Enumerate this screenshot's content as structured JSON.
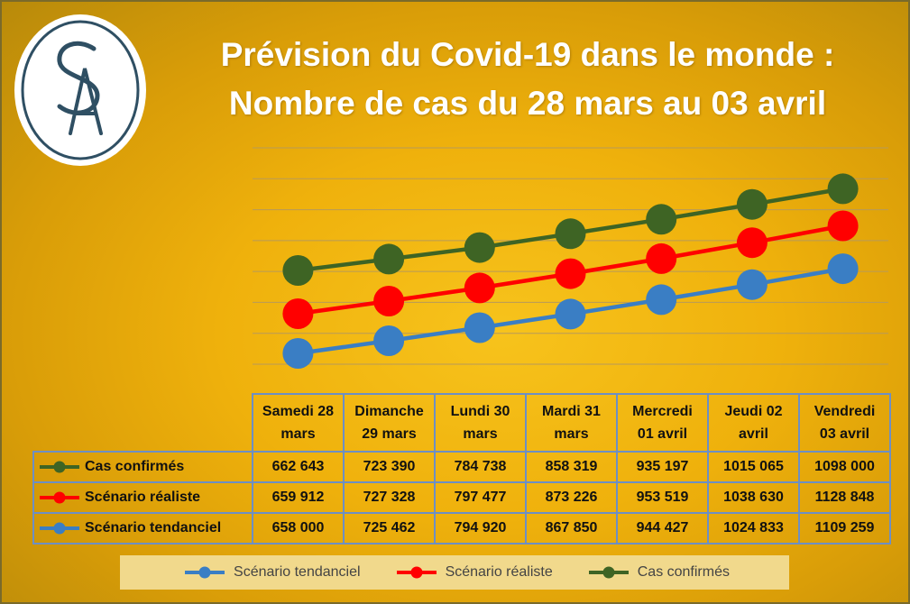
{
  "title": {
    "line1": "Prévision du Covid-19 dans le monde :",
    "line2": "Nombre de cas du 28 mars au 03 avril"
  },
  "logo": {
    "letters": "SA",
    "icon": "sa-monogram-logo"
  },
  "colors": {
    "cas_confirmes": "#3e6424",
    "scenario_realiste": "#ff0000",
    "scenario_tendanciel": "#3a7ec4",
    "gridline": "#b79a5a",
    "table_border": "#6d8fc4"
  },
  "chart_data": {
    "type": "line",
    "categories": [
      "Samedi 28 mars",
      "Dimanche 29 mars",
      "Lundi 30 mars",
      "Mardi 31 mars",
      "Mercredi 01 avril",
      "Jeudi 02 avril",
      "Vendredi 03 avril"
    ],
    "category_lines": [
      [
        "Samedi 28",
        "mars"
      ],
      [
        "Dimanche",
        "29 mars"
      ],
      [
        "Lundi 30",
        "mars"
      ],
      [
        "Mardi 31",
        "mars"
      ],
      [
        "Mercredi",
        "01 avril"
      ],
      [
        "Jeudi 02",
        "avril"
      ],
      [
        "Vendredi",
        "03 avril"
      ]
    ],
    "series": [
      {
        "name": "Cas confirmés",
        "values": [
          662643,
          723390,
          784738,
          858319,
          935197,
          1015065,
          1098000
        ],
        "labels": [
          "662 643",
          "723 390",
          "784 738",
          "858 319",
          "935 197",
          "1015 065",
          "1098 000"
        ]
      },
      {
        "name": "Scénario réaliste",
        "values": [
          659912,
          727328,
          797477,
          873226,
          953519,
          1038630,
          1128848
        ],
        "labels": [
          "659 912",
          "727 328",
          "797 477",
          "873 226",
          "953 519",
          "1038 630",
          "1128 848"
        ]
      },
      {
        "name": "Scénario tendanciel",
        "values": [
          658000,
          725462,
          794920,
          867850,
          944427,
          1024833,
          1109259
        ],
        "labels": [
          "658 000",
          "725 462",
          "794 920",
          "867 850",
          "944 427",
          "1024 833",
          "1109 259"
        ]
      }
    ],
    "legend": [
      "Scénario tendanciel",
      "Scénario réaliste",
      "Cas confirmés"
    ],
    "legend_position": "bottom",
    "grid": true,
    "data_table": true,
    "xlabel": "",
    "ylabel": ""
  }
}
